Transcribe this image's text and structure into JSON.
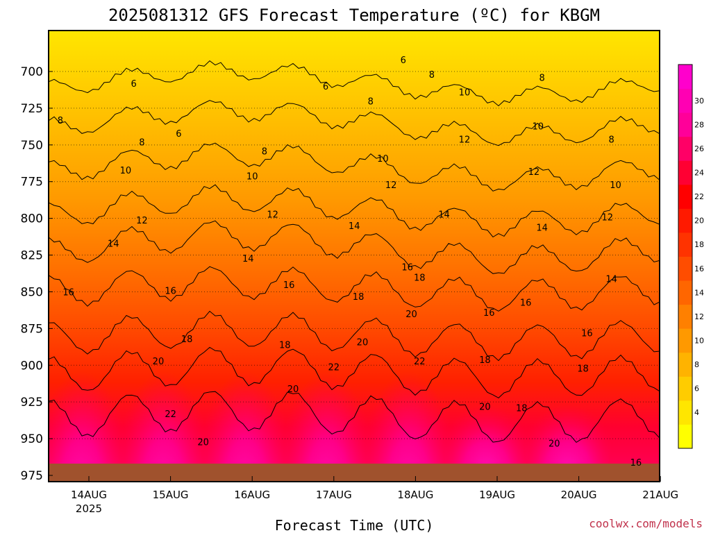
{
  "chart_data": {
    "type": "heatmap",
    "title": "2025081312 GFS Forecast Temperature (ºC) for KBGM",
    "xlabel": "Forecast Time (UTC)",
    "credit": "coolwx.com/models",
    "y_ticks": [
      "700",
      "725",
      "750",
      "775",
      "800",
      "825",
      "850",
      "875",
      "900",
      "925",
      "950",
      "975"
    ],
    "x_ticks": [
      {
        "label": "14AUG",
        "sub": "2025"
      },
      {
        "label": "15AUG",
        "sub": ""
      },
      {
        "label": "16AUG",
        "sub": ""
      },
      {
        "label": "17AUG",
        "sub": ""
      },
      {
        "label": "18AUG",
        "sub": ""
      },
      {
        "label": "19AUG",
        "sub": ""
      },
      {
        "label": "20AUG",
        "sub": ""
      },
      {
        "label": "21AUG",
        "sub": ""
      }
    ],
    "y_axis": {
      "top": 675,
      "bottom": 985,
      "inverted": true,
      "unit": "hPa"
    },
    "colorbar": {
      "labels": [
        "4",
        "6",
        "8",
        "10",
        "12",
        "14",
        "16",
        "18",
        "20",
        "22",
        "24",
        "26",
        "28",
        "30"
      ],
      "colors": [
        "#ffff00",
        "#ffe600",
        "#ffcc00",
        "#ffb300",
        "#ff9900",
        "#ff8000",
        "#ff6600",
        "#ff4d00",
        "#ff3300",
        "#ff1a00",
        "#ff0000",
        "#ff0033",
        "#ff0066",
        "#ff0099",
        "#ff00b3",
        "#ff00cc"
      ]
    },
    "contour_labels": [
      {
        "v": "6",
        "t": 0.55,
        "p": 708
      },
      {
        "v": "6",
        "t": 1.1,
        "p": 742
      },
      {
        "v": "6",
        "t": 2.9,
        "p": 710
      },
      {
        "v": "6",
        "t": 3.85,
        "p": 692
      },
      {
        "v": "8",
        "t": -0.35,
        "p": 733
      },
      {
        "v": "8",
        "t": 0.65,
        "p": 748
      },
      {
        "v": "8",
        "t": 2.15,
        "p": 754
      },
      {
        "v": "8",
        "t": 3.45,
        "p": 720
      },
      {
        "v": "8",
        "t": 4.2,
        "p": 702
      },
      {
        "v": "8",
        "t": 5.55,
        "p": 704
      },
      {
        "v": "8",
        "t": 6.4,
        "p": 746
      },
      {
        "v": "10",
        "t": 0.45,
        "p": 767
      },
      {
        "v": "10",
        "t": 2.0,
        "p": 771
      },
      {
        "v": "10",
        "t": 3.6,
        "p": 759
      },
      {
        "v": "10",
        "t": 4.6,
        "p": 714
      },
      {
        "v": "10",
        "t": 5.5,
        "p": 737
      },
      {
        "v": "10",
        "t": 6.45,
        "p": 777
      },
      {
        "v": "12",
        "t": 0.65,
        "p": 801
      },
      {
        "v": "12",
        "t": 2.25,
        "p": 797
      },
      {
        "v": "12",
        "t": 3.7,
        "p": 777
      },
      {
        "v": "12",
        "t": 4.6,
        "p": 746
      },
      {
        "v": "12",
        "t": 5.45,
        "p": 768
      },
      {
        "v": "12",
        "t": 6.35,
        "p": 799
      },
      {
        "v": "14",
        "t": 0.3,
        "p": 817
      },
      {
        "v": "14",
        "t": 1.95,
        "p": 827
      },
      {
        "v": "14",
        "t": 3.25,
        "p": 805
      },
      {
        "v": "14",
        "t": 4.35,
        "p": 797
      },
      {
        "v": "14",
        "t": 5.55,
        "p": 806
      },
      {
        "v": "14",
        "t": 6.4,
        "p": 841
      },
      {
        "v": "16",
        "t": -0.25,
        "p": 850
      },
      {
        "v": "16",
        "t": 1.0,
        "p": 849
      },
      {
        "v": "16",
        "t": 2.45,
        "p": 845
      },
      {
        "v": "16",
        "t": 3.9,
        "p": 833
      },
      {
        "v": "16",
        "t": 4.9,
        "p": 864
      },
      {
        "v": "16",
        "t": 5.35,
        "p": 857
      },
      {
        "v": "16",
        "t": 6.1,
        "p": 878
      },
      {
        "v": "16",
        "t": 6.7,
        "p": 966
      },
      {
        "v": "18",
        "t": 1.2,
        "p": 882
      },
      {
        "v": "18",
        "t": 2.4,
        "p": 886
      },
      {
        "v": "18",
        "t": 3.3,
        "p": 853
      },
      {
        "v": "18",
        "t": 4.05,
        "p": 840
      },
      {
        "v": "18",
        "t": 4.85,
        "p": 896
      },
      {
        "v": "18",
        "t": 5.3,
        "p": 929
      },
      {
        "v": "18",
        "t": 6.05,
        "p": 902
      },
      {
        "v": "20",
        "t": 0.85,
        "p": 897
      },
      {
        "v": "20",
        "t": 2.5,
        "p": 916
      },
      {
        "v": "20",
        "t": 3.35,
        "p": 884
      },
      {
        "v": "20",
        "t": 3.95,
        "p": 865
      },
      {
        "v": "20",
        "t": 4.85,
        "p": 928
      },
      {
        "v": "20",
        "t": 5.7,
        "p": 953
      },
      {
        "v": "20",
        "t": 1.4,
        "p": 952
      },
      {
        "v": "22",
        "t": 1.0,
        "p": 933
      },
      {
        "v": "22",
        "t": 3.0,
        "p": 901
      },
      {
        "v": "22",
        "t": 4.05,
        "p": 897
      }
    ]
  }
}
